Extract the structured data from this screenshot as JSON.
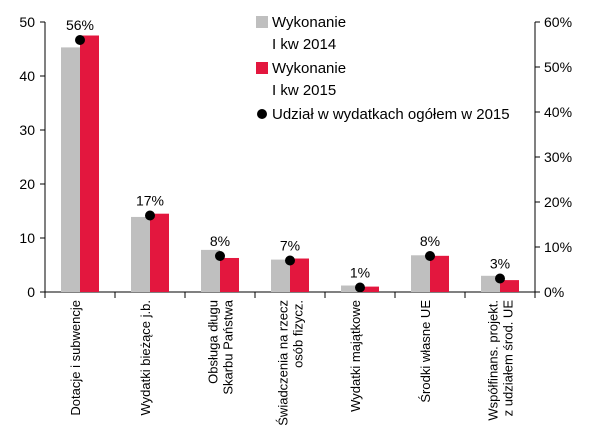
{
  "chart_data": {
    "type": "bar",
    "categories": [
      "Dotacje i subwencje",
      "Wydatki bieżące j.b.",
      "Obsługa długu\nSkarbu Państwa",
      "Świadczenia na rzecz\nosób fizycz.",
      "Wydatki majątkowe",
      "Środki własne UE",
      "Współfinans. projekt.\nz udziałem środ. UE"
    ],
    "series": [
      {
        "name": "Wykonanie\nI kw 2014",
        "color": "#bfbfbf",
        "values": [
          45.3,
          13.9,
          7.8,
          6.0,
          1.2,
          6.8,
          3.0
        ]
      },
      {
        "name": "Wykonanie\nI kw 2015",
        "color": "#e3173e",
        "values": [
          47.5,
          14.5,
          6.3,
          6.2,
          1.0,
          6.7,
          2.2
        ]
      },
      {
        "name": "Udział w wydatkach ogółem w  2015",
        "color": "#000000",
        "type": "scatter",
        "axis": "y2",
        "values": [
          56,
          17,
          8,
          7,
          1,
          8,
          3
        ],
        "value_labels": [
          "56%",
          "17%",
          "8%",
          "7%",
          "1%",
          "8%",
          "3%"
        ]
      }
    ],
    "ylim": [
      0,
      50
    ],
    "yticks": [
      0,
      10,
      20,
      30,
      40,
      50
    ],
    "y2lim": [
      0,
      60
    ],
    "y2ticks": [
      {
        "value": 0,
        "label": "0%"
      },
      {
        "value": 10,
        "label": "10%"
      },
      {
        "value": 20,
        "label": "20%"
      },
      {
        "value": 30,
        "label": "30%"
      },
      {
        "value": 40,
        "label": "40%"
      },
      {
        "value": 50,
        "label": "50%"
      },
      {
        "value": 60,
        "label": "60%"
      }
    ]
  }
}
